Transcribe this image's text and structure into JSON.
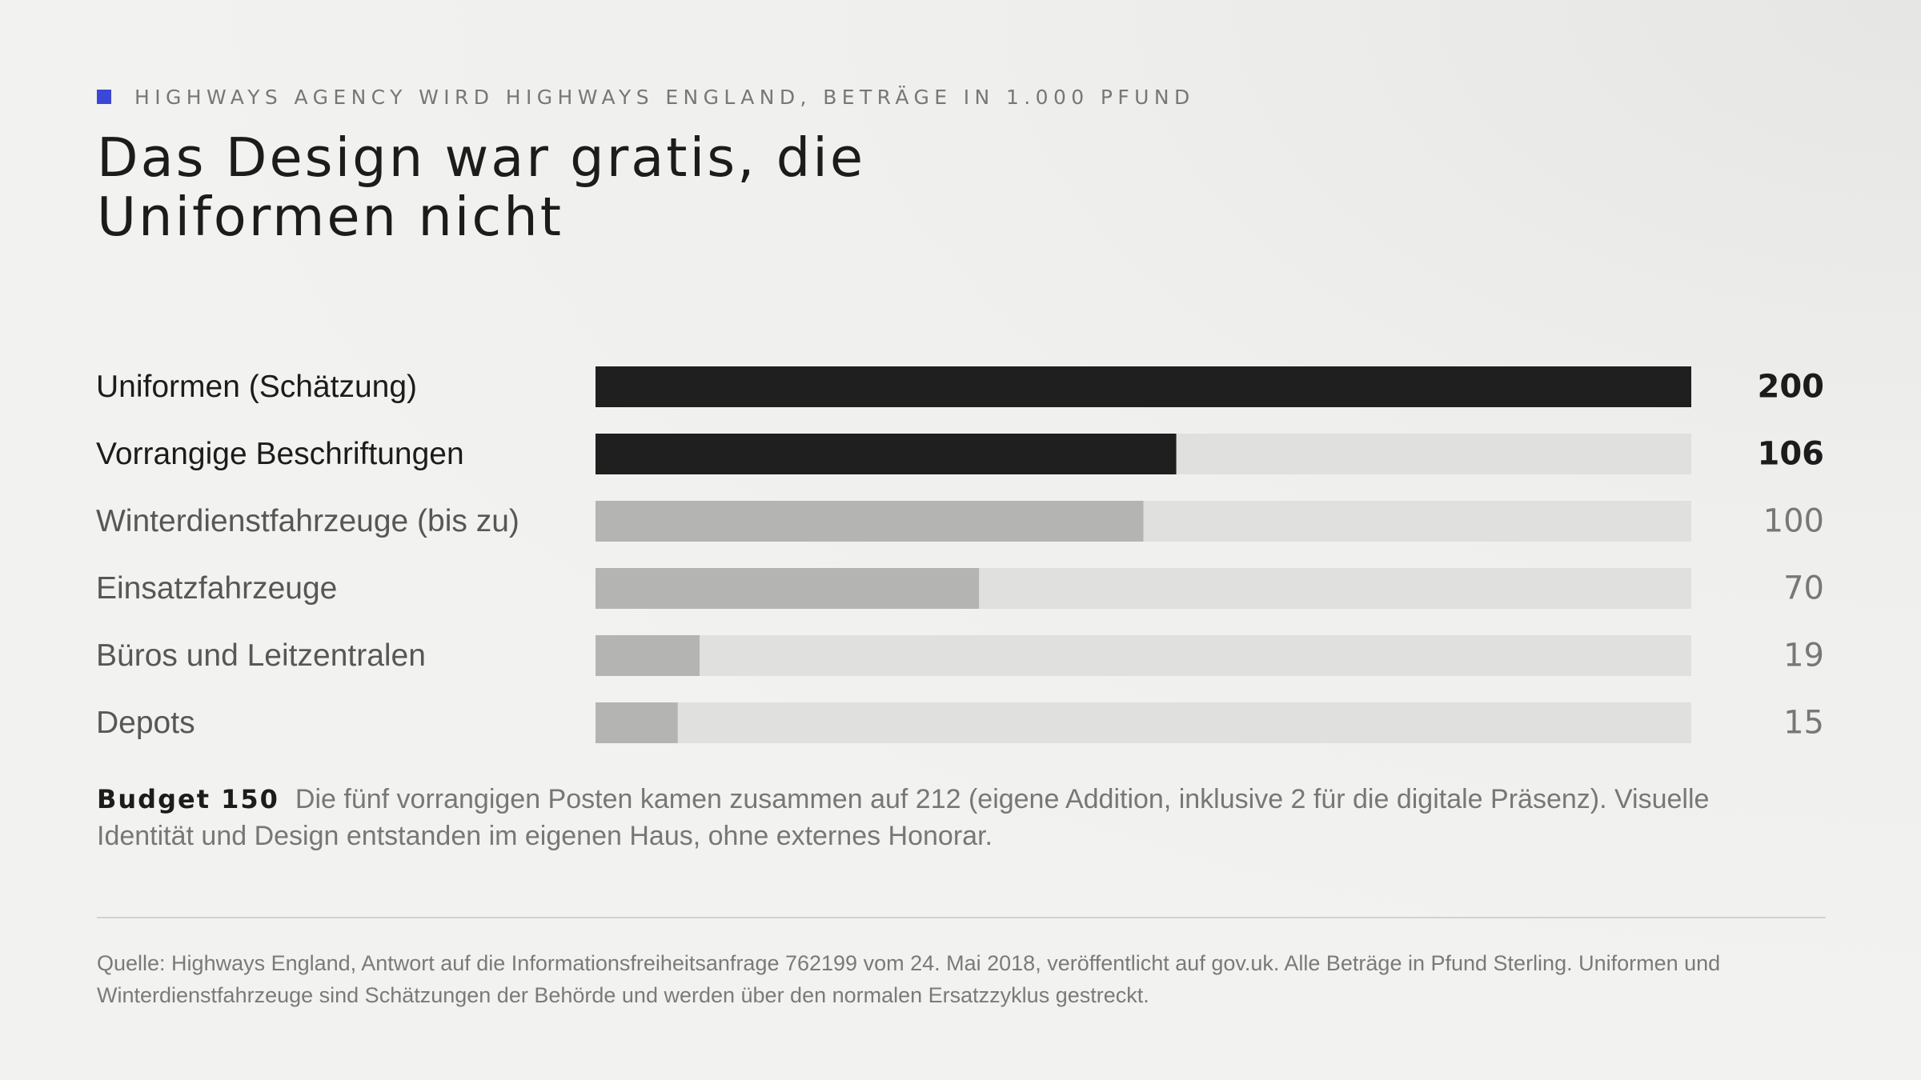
{
  "header": {
    "eyebrow": "HIGHWAYS AGENCY WIRD HIGHWAYS ENGLAND, BETRÄGE IN 1.000 PFUND",
    "title": "Das Design war gratis, die Uniformen nicht"
  },
  "chart_data": {
    "type": "bar",
    "orientation": "horizontal",
    "title": "Das Design war gratis, die Uniformen nicht",
    "subtitle": "HIGHWAYS AGENCY WIRD HIGHWAYS ENGLAND, BETRÄGE IN 1.000 PFUND",
    "xlim": [
      0,
      200
    ],
    "grid": false,
    "legend": "none",
    "categories": [
      "Uniformen (Schätzung)",
      "Vorrangige Beschriftungen",
      "Winterdienstfahrzeuge (bis zu)",
      "Einsatzfahrzeuge",
      "Büros und Leitzentralen",
      "Depots"
    ],
    "values": [
      200,
      106,
      100,
      70,
      19,
      15
    ],
    "emphasis": [
      true,
      true,
      false,
      false,
      false,
      false
    ]
  },
  "note": {
    "lead": "Budget 150",
    "text": "Die fünf vorrangigen Posten kamen zusammen auf 212 (eigene Addition, inklusive 2 für die digitale Präsenz). Visuelle Identität und Design entstanden im eigenen Haus, ohne externes Honorar."
  },
  "source": {
    "text": "Quelle: Highways England, Antwort auf die Informationsfreiheitsanfrage 762199 vom 24. Mai 2018, veröffentlicht auf gov.uk. Alle Beträge in Pfund Sterling. Uniformen und Winterdienstfahrzeuge sind Schätzungen der Behörde und werden über den normalen Ersatzzyklus gestreckt."
  },
  "colors": {
    "accent": "#3b47d6",
    "bar_emphasis": "#1f1f1f",
    "bar_muted": "#b4b4b2",
    "track": "#e0e0de",
    "label_emphasis": "#1c1c1c",
    "label_muted": "#575757",
    "value_muted": "#777777"
  }
}
